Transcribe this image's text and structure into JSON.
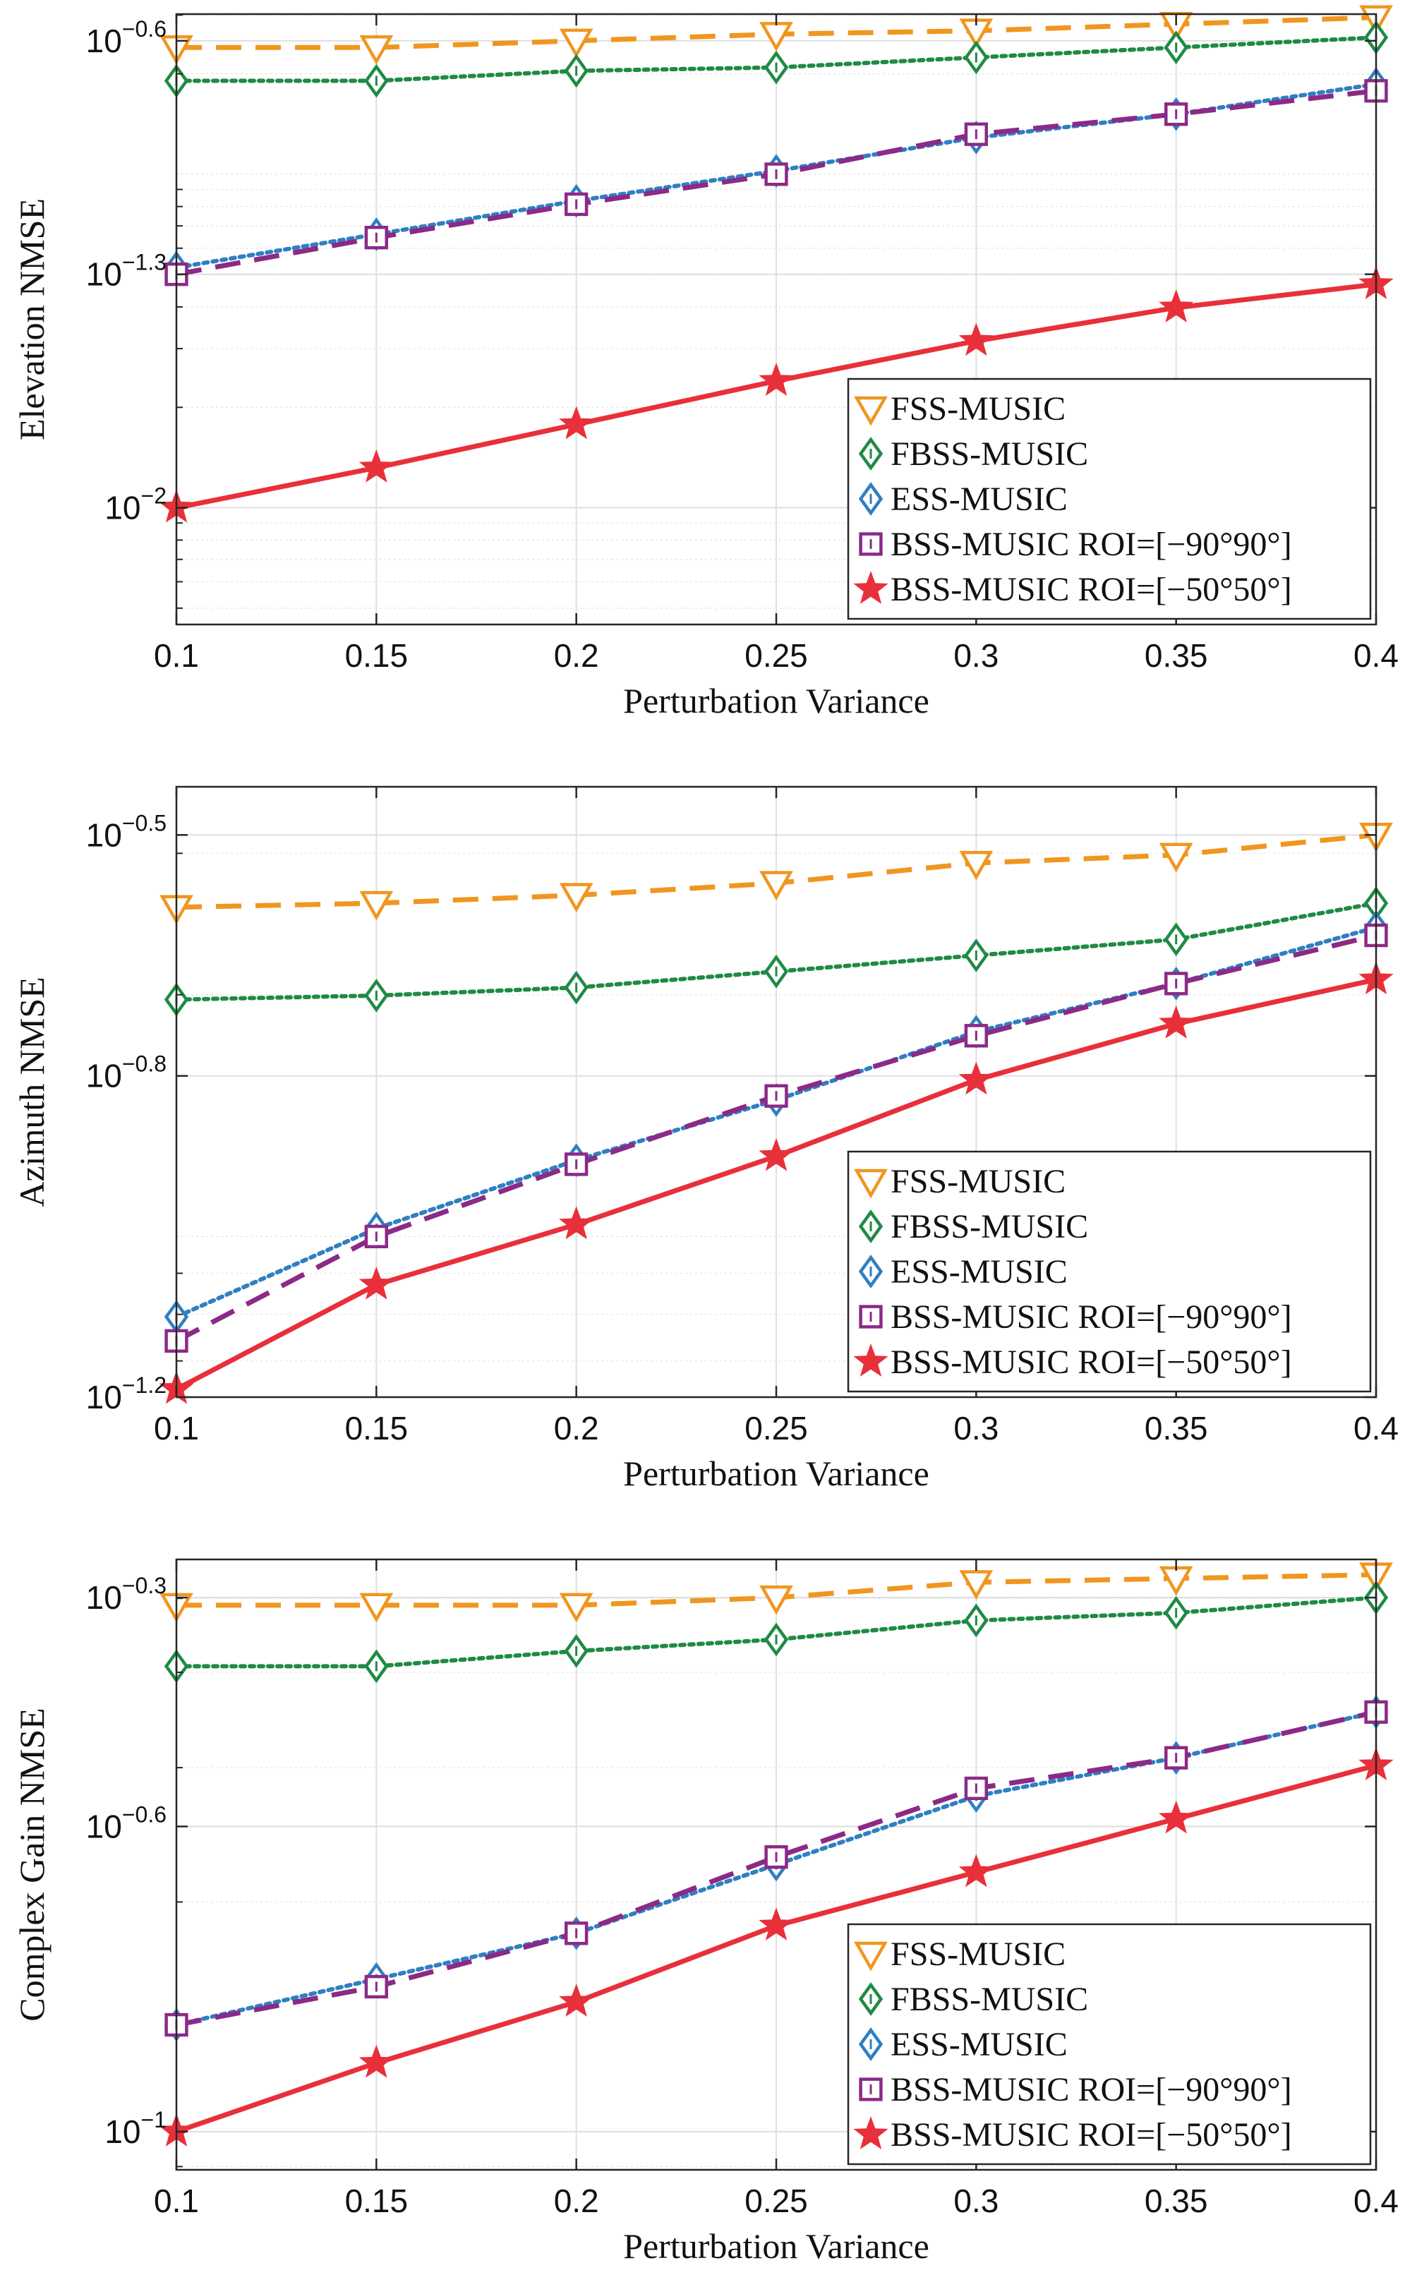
{
  "chart_data": [
    {
      "type": "line",
      "title": "",
      "xlabel": "Perturbation Variance",
      "ylabel": "Elevation NMSE",
      "yscale": "log",
      "grid": true,
      "legend_position": "bottom-right",
      "x": [
        0.1,
        0.15,
        0.2,
        0.25,
        0.3,
        0.35,
        0.4
      ],
      "x_ticks": [
        "0.1",
        "0.15",
        "0.2",
        "0.25",
        "0.3",
        "0.35",
        "0.4"
      ],
      "xlim": [
        0.1,
        0.4
      ],
      "ylim_log10": [
        -2.35,
        -0.52
      ],
      "y_ticks": [
        {
          "log": -0.6,
          "base": "10",
          "exp": "−0.6"
        },
        {
          "log": -1.3,
          "base": "10",
          "exp": "−1.3"
        },
        {
          "log": -2.0,
          "base": "10",
          "exp": "−2"
        }
      ],
      "series": [
        {
          "name": "FSS-MUSIC",
          "color": "#f0961f",
          "style": "dashed",
          "marker": "triangle-down",
          "values_log10": [
            -0.62,
            -0.62,
            -0.6,
            -0.58,
            -0.57,
            -0.55,
            -0.53
          ]
        },
        {
          "name": "FBSS-MUSIC",
          "color": "#1f8a44",
          "style": "dotted",
          "marker": "diamond",
          "values_log10": [
            -0.72,
            -0.72,
            -0.69,
            -0.68,
            -0.65,
            -0.62,
            -0.59
          ]
        },
        {
          "name": "ESS-MUSIC",
          "color": "#2f7fc1",
          "style": "dotted",
          "marker": "diamond",
          "values_log10": [
            -1.28,
            -1.18,
            -1.08,
            -0.99,
            -0.89,
            -0.82,
            -0.73
          ]
        },
        {
          "name": "BSS-MUSIC ROI=[−90°90°]",
          "color": "#8b2a87",
          "style": "dashed",
          "marker": "square",
          "values_log10": [
            -1.3,
            -1.19,
            -1.09,
            -1.0,
            -0.88,
            -0.82,
            -0.75
          ]
        },
        {
          "name": "BSS-MUSIC ROI=[−50°50°]",
          "color": "#e8303a",
          "style": "solid",
          "marker": "star",
          "values_log10": [
            -2.0,
            -1.88,
            -1.75,
            -1.62,
            -1.5,
            -1.4,
            -1.33
          ]
        }
      ]
    },
    {
      "type": "line",
      "title": "",
      "xlabel": "Perturbation Variance",
      "ylabel": "Azimuth NMSE",
      "yscale": "log",
      "grid": true,
      "legend_position": "bottom-right",
      "x": [
        0.1,
        0.15,
        0.2,
        0.25,
        0.3,
        0.35,
        0.4
      ],
      "x_ticks": [
        "0.1",
        "0.15",
        "0.2",
        "0.25",
        "0.3",
        "0.35",
        "0.4"
      ],
      "xlim": [
        0.1,
        0.4
      ],
      "ylim_log10": [
        -1.2,
        -0.44
      ],
      "y_ticks": [
        {
          "log": -0.5,
          "base": "10",
          "exp": "−0.5"
        },
        {
          "log": -0.8,
          "base": "10",
          "exp": "−0.8"
        },
        {
          "log": -1.2,
          "base": "10",
          "exp": "−1.2"
        }
      ],
      "series": [
        {
          "name": "FSS-MUSIC",
          "color": "#f0961f",
          "style": "dashed",
          "marker": "triangle-down",
          "values_log10": [
            -0.59,
            -0.585,
            -0.575,
            -0.56,
            -0.535,
            -0.525,
            -0.5
          ]
        },
        {
          "name": "FBSS-MUSIC",
          "color": "#1f8a44",
          "style": "dotted",
          "marker": "diamond",
          "values_log10": [
            -0.705,
            -0.7,
            -0.69,
            -0.67,
            -0.65,
            -0.63,
            -0.585
          ]
        },
        {
          "name": "ESS-MUSIC",
          "color": "#2f7fc1",
          "style": "dotted",
          "marker": "diamond",
          "values_log10": [
            -1.1,
            -0.99,
            -0.905,
            -0.83,
            -0.745,
            -0.685,
            -0.615
          ]
        },
        {
          "name": "BSS-MUSIC ROI=[−90°90°]",
          "color": "#8b2a87",
          "style": "dashed",
          "marker": "square",
          "values_log10": [
            -1.13,
            -1.0,
            -0.91,
            -0.825,
            -0.75,
            -0.685,
            -0.625
          ]
        },
        {
          "name": "BSS-MUSIC ROI=[−50°50°]",
          "color": "#e8303a",
          "style": "solid",
          "marker": "star",
          "values_log10": [
            -1.19,
            -1.06,
            -0.985,
            -0.9,
            -0.805,
            -0.735,
            -0.68
          ]
        }
      ]
    },
    {
      "type": "line",
      "title": "",
      "xlabel": "Perturbation Variance",
      "ylabel": "Complex Gain NMSE",
      "yscale": "log",
      "grid": true,
      "legend_position": "bottom-right",
      "x": [
        0.1,
        0.15,
        0.2,
        0.25,
        0.3,
        0.35,
        0.4
      ],
      "x_ticks": [
        "0.1",
        "0.15",
        "0.2",
        "0.25",
        "0.3",
        "0.35",
        "0.4"
      ],
      "xlim": [
        0.1,
        0.4
      ],
      "ylim_log10": [
        -1.05,
        -0.25
      ],
      "y_ticks": [
        {
          "log": -0.3,
          "base": "10",
          "exp": "−0.3"
        },
        {
          "log": -0.6,
          "base": "10",
          "exp": "−0.6"
        },
        {
          "log": -1.0,
          "base": "10",
          "exp": "−1"
        }
      ],
      "series": [
        {
          "name": "FSS-MUSIC",
          "color": "#f0961f",
          "style": "dashed",
          "marker": "triangle-down",
          "values_log10": [
            -0.31,
            -0.31,
            -0.31,
            -0.3,
            -0.28,
            -0.275,
            -0.27
          ]
        },
        {
          "name": "FBSS-MUSIC",
          "color": "#1f8a44",
          "style": "dotted",
          "marker": "diamond",
          "values_log10": [
            -0.39,
            -0.39,
            -0.37,
            -0.355,
            -0.33,
            -0.32,
            -0.3
          ]
        },
        {
          "name": "ESS-MUSIC",
          "color": "#2f7fc1",
          "style": "dotted",
          "marker": "diamond",
          "values_log10": [
            -0.86,
            -0.8,
            -0.74,
            -0.65,
            -0.56,
            -0.51,
            -0.45
          ]
        },
        {
          "name": "BSS-MUSIC ROI=[−90°90°]",
          "color": "#8b2a87",
          "style": "dashed",
          "marker": "square",
          "values_log10": [
            -0.86,
            -0.81,
            -0.74,
            -0.64,
            -0.55,
            -0.51,
            -0.45
          ]
        },
        {
          "name": "BSS-MUSIC ROI=[−50°50°]",
          "color": "#e8303a",
          "style": "solid",
          "marker": "star",
          "values_log10": [
            -1.0,
            -0.91,
            -0.83,
            -0.73,
            -0.66,
            -0.59,
            -0.52
          ]
        }
      ]
    }
  ]
}
